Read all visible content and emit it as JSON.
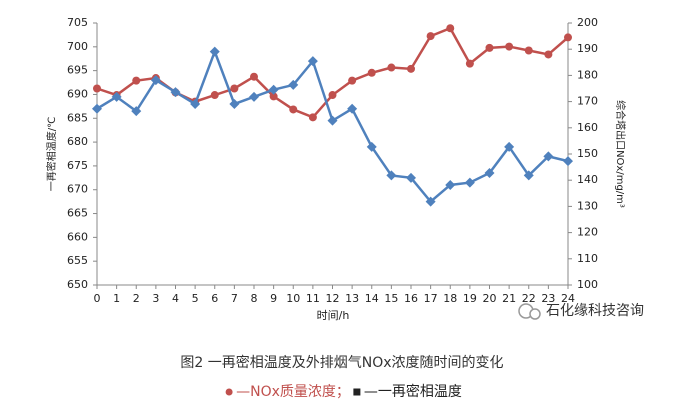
{
  "chart_data": {
    "type": "line",
    "x": [
      0,
      1,
      2,
      3,
      4,
      5,
      6,
      7,
      8,
      9,
      10,
      11,
      12,
      13,
      14,
      15,
      16,
      17,
      18,
      19,
      20,
      21,
      22,
      23,
      24
    ],
    "xlim": [
      0,
      24
    ],
    "xticks": [
      0,
      1,
      2,
      3,
      4,
      5,
      6,
      7,
      8,
      9,
      10,
      11,
      12,
      13,
      14,
      15,
      16,
      17,
      18,
      19,
      20,
      21,
      22,
      23,
      24
    ],
    "xlabel": "时间/h",
    "ylabel": "一再密相温度/℃",
    "y2label": "综合塔出口NOx/mg/m³",
    "ylim": [
      650,
      705
    ],
    "yticks": [
      650,
      655,
      660,
      665,
      670,
      675,
      680,
      685,
      690,
      695,
      700,
      705
    ],
    "y2lim": [
      100,
      200
    ],
    "y2ticks": [
      100,
      110,
      120,
      130,
      140,
      150,
      160,
      170,
      180,
      190,
      200
    ],
    "grid": false,
    "series": [
      {
        "name": "NOx质量浓度",
        "color": "#c0504d",
        "marker": "circle",
        "axis": "y2",
        "values": [
          175,
          172.5,
          178,
          179,
          173.5,
          170,
          172.5,
          175,
          179.5,
          172,
          167,
          164,
          172.5,
          178,
          181,
          183,
          182.5,
          195,
          198,
          184.5,
          190.5,
          191,
          189.5,
          188,
          194.5
        ]
      },
      {
        "name": "一再密相温度",
        "color": "#4f81bd",
        "marker": "diamond",
        "axis": "y",
        "values": [
          687,
          689.5,
          686.5,
          693,
          690.5,
          688,
          699,
          688,
          689.5,
          691,
          692,
          697,
          684.5,
          687,
          679,
          673,
          672.5,
          667.5,
          671,
          671.5,
          673.5,
          679,
          673,
          677,
          676
        ]
      }
    ],
    "legend_dash": "—",
    "legend_separator": "；",
    "caption": "图2  一再密相温度及外排烟气NOx浓度随时间的变化",
    "watermark": "石化缘科技咨询"
  }
}
